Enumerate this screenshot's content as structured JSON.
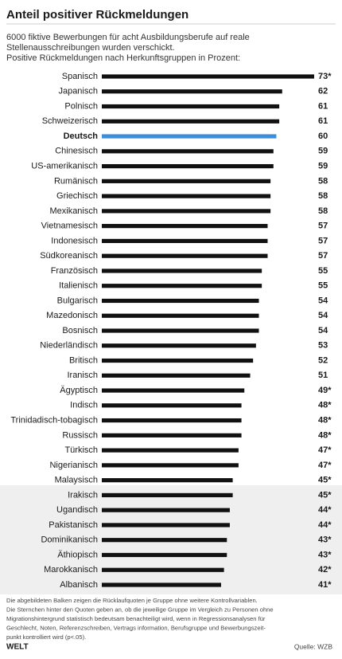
{
  "chart_data": {
    "type": "barh",
    "title": "Anteil positiver Rückmeldungen",
    "subtitle": [
      "6000 fiktive Bewerbungen für acht Ausbildungsberufe auf reale",
      "Stellenausschreibungen wurden verschickt.",
      "Positive Rückmeldungen nach Herkunftsgruppen in Prozent:"
    ],
    "categories": [
      "Spanisch",
      "Japanisch",
      "Polnisch",
      "Schweizerisch",
      "Deutsch",
      "Chinesisch",
      "US-amerikanisch",
      "Rumänisch",
      "Griechisch",
      "Mexikanisch",
      "Vietnamesisch",
      "Indonesisch",
      "Südkoreanisch",
      "Französisch",
      "Italienisch",
      "Bulgarisch",
      "Mazedonisch",
      "Bosnisch",
      "Niederländisch",
      "Britisch",
      "Iranisch",
      "Ägyptisch",
      "Indisch",
      "Trinidadisch-tobagisch",
      "Russisch",
      "Türkisch",
      "Nigerianisch",
      "Malaysisch",
      "Irakisch",
      "Ugandisch",
      "Pakistanisch",
      "Dominikanisch",
      "Äthiopisch",
      "Marokkanisch",
      "Albanisch"
    ],
    "values": [
      73,
      62,
      61,
      61,
      60,
      59,
      59,
      58,
      58,
      58,
      57,
      57,
      57,
      55,
      55,
      54,
      54,
      54,
      53,
      52,
      51,
      49,
      48,
      48,
      48,
      47,
      47,
      45,
      45,
      44,
      44,
      43,
      43,
      42,
      41
    ],
    "value_labels": [
      "73*",
      "62",
      "61",
      "61",
      "60",
      "59",
      "59",
      "58",
      "58",
      "58",
      "57",
      "57",
      "57",
      "55",
      "55",
      "54",
      "54",
      "54",
      "53",
      "52",
      "51",
      "49*",
      "48*",
      "48*",
      "48*",
      "47*",
      "47*",
      "45*",
      "45*",
      "44*",
      "44*",
      "43*",
      "43*",
      "42*",
      "41*"
    ],
    "color": "#111111",
    "colors": [
      "#111111",
      "#111111",
      "#111111",
      "#111111",
      "#3d8ed8",
      "#111111",
      "#111111",
      "#111111",
      "#111111",
      "#111111",
      "#111111",
      "#111111",
      "#111111",
      "#111111",
      "#111111",
      "#111111",
      "#111111",
      "#111111",
      "#111111",
      "#111111",
      "#111111",
      "#111111",
      "#111111",
      "#111111",
      "#111111",
      "#111111",
      "#111111",
      "#111111",
      "#111111",
      "#111111",
      "#111111",
      "#111111",
      "#111111",
      "#111111",
      "#111111"
    ],
    "xlim": [
      0,
      73
    ],
    "footnote": [
      "Die abgebildeten Balken zeigen die Rücklaufquoten je Gruppe ohne weitere Kontrollvariablen.",
      "Die Sternchen hinter den Quoten geben an,  ob die jeweilige Gruppe im Vergleich zu Personen ohne",
      "Migrationshintergrund statistisch bedeutsam benachteiligt wird, wenn in Regressionsanalysen für",
      "Geschlecht, Noten, Referenzschreiben, Vertrags information, Berufsgruppe und Bewerbungszeit-",
      "punkt kontrolliert wird (p<.05)."
    ],
    "brand": "WELT",
    "source": "Quelle: WZB"
  }
}
